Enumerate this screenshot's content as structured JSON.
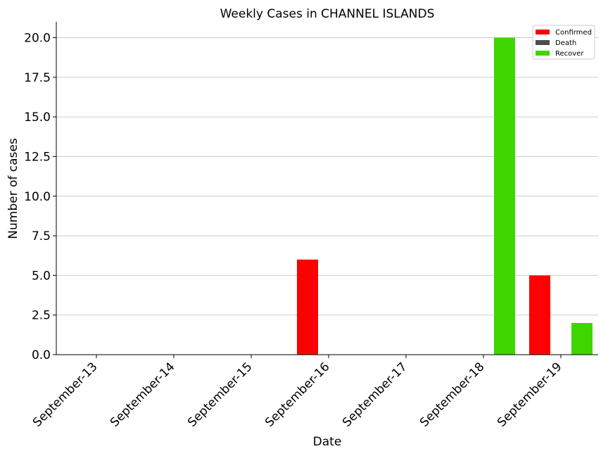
{
  "chart_data": {
    "type": "bar",
    "title": "Weekly Cases in CHANNEL ISLANDS",
    "xlabel": "Date",
    "ylabel": "Number of cases",
    "categories": [
      "September-13",
      "September-14",
      "September-15",
      "September-16",
      "September-17",
      "September-18",
      "September-19"
    ],
    "series": [
      {
        "name": "Confirmed",
        "color": "#ff0000",
        "values": [
          0,
          0,
          0,
          6,
          0,
          0,
          5
        ]
      },
      {
        "name": "Death",
        "color": "#4d4d4d",
        "values": [
          0,
          0,
          0,
          0,
          0,
          0,
          0
        ]
      },
      {
        "name": "Recover",
        "color": "#3ed600",
        "values": [
          0,
          0,
          0,
          0,
          0,
          20,
          2
        ]
      }
    ],
    "ylim": [
      0,
      21
    ],
    "yticks": [
      "0.0",
      "2.5",
      "5.0",
      "7.5",
      "10.0",
      "12.5",
      "15.0",
      "17.5",
      "20.0"
    ],
    "grid": "horizontal",
    "legend_position": "top-right"
  }
}
